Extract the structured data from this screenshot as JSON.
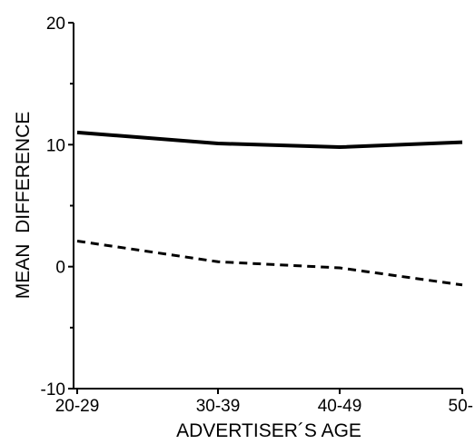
{
  "chart_data": {
    "type": "line",
    "title": "",
    "xlabel": "ADVERTISER´S AGE",
    "ylabel": "MEAN  DIFFERENCE",
    "categories": [
      "20-29",
      "30-39",
      "40-49",
      "50-"
    ],
    "ylim": [
      -10,
      20
    ],
    "yticks": [
      20,
      10,
      0,
      -10
    ],
    "grid": false,
    "legend": "none",
    "series": [
      {
        "style": "solid",
        "values": [
          11.0,
          10.1,
          9.8,
          10.2
        ]
      },
      {
        "style": "dashed",
        "values": [
          2.1,
          0.4,
          -0.1,
          -1.5
        ]
      }
    ]
  }
}
